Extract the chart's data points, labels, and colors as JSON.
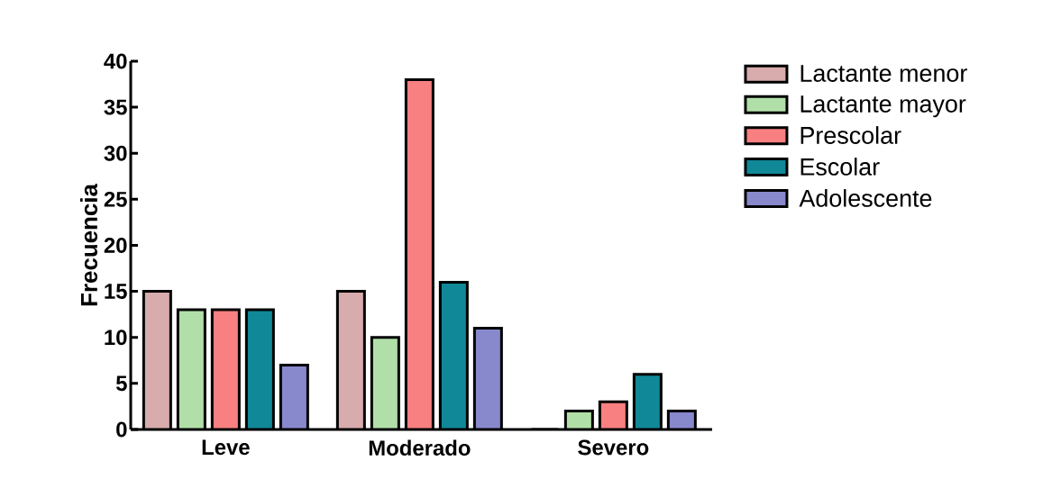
{
  "chart_data": {
    "type": "bar",
    "ylabel": "Frecuencia",
    "categories": [
      "Leve",
      "Moderado",
      "Severo"
    ],
    "series": [
      {
        "name": "Lactante menor",
        "color": "#d8acac",
        "values": [
          15,
          15,
          0
        ]
      },
      {
        "name": "Lactante mayor",
        "color": "#b0e0a8",
        "values": [
          13,
          10,
          2
        ]
      },
      {
        "name": "Prescolar",
        "color": "#f88080",
        "values": [
          13,
          38,
          3
        ]
      },
      {
        "name": "Escolar",
        "color": "#108898",
        "values": [
          13,
          16,
          6
        ]
      },
      {
        "name": "Adolescente",
        "color": "#8888cc",
        "values": [
          7,
          11,
          2
        ]
      }
    ],
    "ylim": [
      0,
      40
    ],
    "yticks": [
      0,
      5,
      10,
      15,
      20,
      25,
      30,
      35,
      40
    ],
    "grid": false,
    "legend": "top right"
  }
}
